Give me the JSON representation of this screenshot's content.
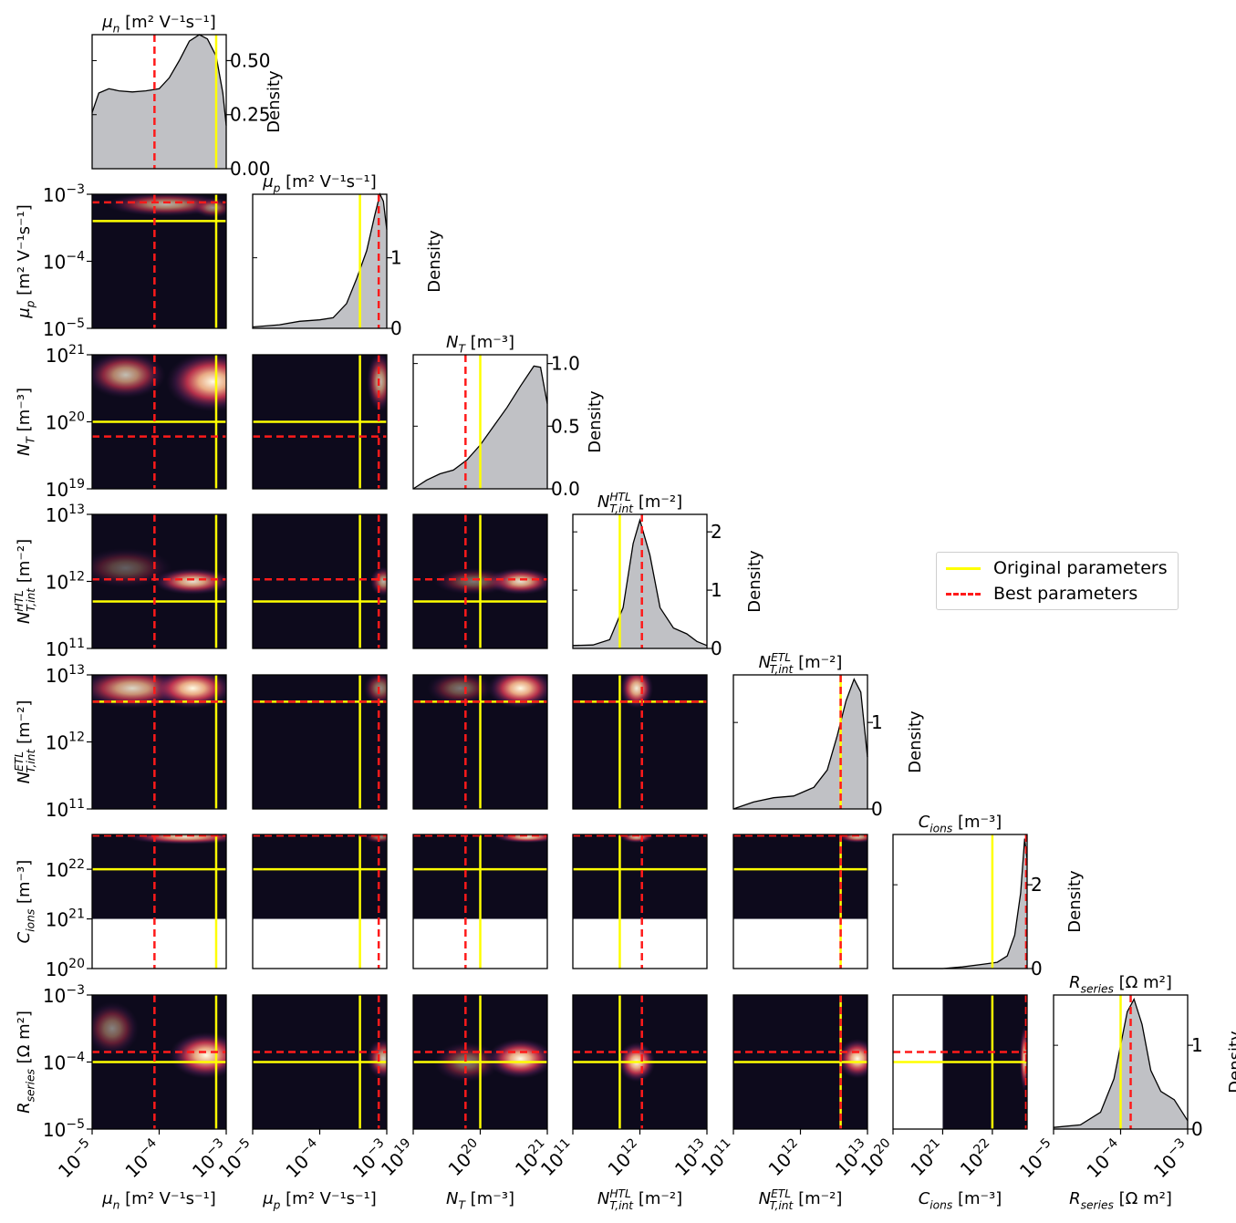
{
  "chart_data": {
    "type": "corner",
    "density_label": "Density",
    "params": [
      {
        "key": "mu_n",
        "sym": "μ",
        "sub": "n",
        "unit": " [m² V⁻¹s⁻¹]",
        "lim": [
          -5,
          -3
        ],
        "ticks": [
          -5,
          -4,
          -3
        ],
        "orig": -3.15,
        "best": -4.07
      },
      {
        "key": "mu_p",
        "sym": "μ",
        "sub": "p",
        "unit": " [m² V⁻¹s⁻¹]",
        "lim": [
          -5,
          -3
        ],
        "ticks": [
          -5,
          -4,
          -3
        ],
        "orig": -3.4,
        "best": -3.12
      },
      {
        "key": "N_T",
        "sym": "N",
        "sub": "T",
        "unit": " [m⁻³]",
        "lim": [
          19,
          21
        ],
        "ticks": [
          19,
          20,
          21
        ],
        "orig": 20.0,
        "best": 19.78
      },
      {
        "key": "N_HTL",
        "sym": "N",
        "sub": "T,int",
        "sup": "HTL",
        "unit": " [m⁻²]",
        "lim": [
          11,
          13
        ],
        "ticks": [
          11,
          12,
          13
        ],
        "orig": 11.7,
        "best": 12.03
      },
      {
        "key": "N_ETL",
        "sym": "N",
        "sub": "T,int",
        "sup": "ETL",
        "unit": " [m⁻²]",
        "lim": [
          11,
          13
        ],
        "ticks": [
          11,
          12,
          13
        ],
        "orig": 12.6,
        "best": 12.6
      },
      {
        "key": "C_ions",
        "sym": "C",
        "sub": "ions",
        "unit": " [m⁻³]",
        "lim": [
          20,
          22.7
        ],
        "ticks": [
          20,
          21,
          22
        ],
        "orig": 22.0,
        "best": 22.68
      },
      {
        "key": "R_series",
        "sym": "R",
        "sub": "series",
        "unit": " [Ω m²]",
        "lim": [
          -5,
          -3
        ],
        "ticks": [
          -5,
          -4,
          -3
        ],
        "orig": -4.0,
        "best": -3.85
      }
    ],
    "diagonals": [
      {
        "ymax": 0.62,
        "ytick_values": [
          0,
          0.25,
          0.5
        ],
        "ytick_labels": [
          "0.00",
          "0.25",
          "0.50"
        ],
        "curve": [
          [
            -5,
            0.26
          ],
          [
            -4.9,
            0.35
          ],
          [
            -4.75,
            0.37
          ],
          [
            -4.6,
            0.36
          ],
          [
            -4.4,
            0.355
          ],
          [
            -4.2,
            0.36
          ],
          [
            -4.0,
            0.37
          ],
          [
            -3.85,
            0.42
          ],
          [
            -3.7,
            0.5
          ],
          [
            -3.55,
            0.59
          ],
          [
            -3.4,
            0.62
          ],
          [
            -3.28,
            0.6
          ],
          [
            -3.15,
            0.52
          ],
          [
            -3.05,
            0.35
          ],
          [
            -3,
            0.2
          ]
        ]
      },
      {
        "ymax": 1.9,
        "ytick_values": [
          0,
          1
        ],
        "ytick_labels": [
          "0",
          "1"
        ],
        "curve": [
          [
            -5,
            0.02
          ],
          [
            -4.6,
            0.05
          ],
          [
            -4.3,
            0.1
          ],
          [
            -4.0,
            0.12
          ],
          [
            -3.8,
            0.15
          ],
          [
            -3.6,
            0.35
          ],
          [
            -3.45,
            0.7
          ],
          [
            -3.3,
            1.1
          ],
          [
            -3.18,
            1.6
          ],
          [
            -3.1,
            1.9
          ],
          [
            -3.05,
            1.8
          ],
          [
            -3,
            1.4
          ]
        ]
      },
      {
        "ymax": 1.07,
        "ytick_values": [
          0,
          0.5,
          1.0
        ],
        "ytick_labels": [
          "0.0",
          "0.5",
          "1.0"
        ],
        "curve": [
          [
            19,
            0.0
          ],
          [
            19.2,
            0.07
          ],
          [
            19.4,
            0.12
          ],
          [
            19.6,
            0.15
          ],
          [
            19.8,
            0.23
          ],
          [
            20.0,
            0.35
          ],
          [
            20.2,
            0.5
          ],
          [
            20.4,
            0.65
          ],
          [
            20.6,
            0.82
          ],
          [
            20.8,
            0.98
          ],
          [
            20.9,
            0.97
          ],
          [
            21,
            0.68
          ]
        ]
      },
      {
        "ymax": 2.3,
        "ytick_values": [
          0,
          1,
          2
        ],
        "ytick_labels": [
          "0",
          "1",
          "2"
        ],
        "curve": [
          [
            11,
            0.05
          ],
          [
            11.3,
            0.06
          ],
          [
            11.55,
            0.15
          ],
          [
            11.75,
            0.7
          ],
          [
            11.9,
            1.8
          ],
          [
            12.0,
            2.2
          ],
          [
            12.15,
            1.6
          ],
          [
            12.3,
            0.7
          ],
          [
            12.5,
            0.35
          ],
          [
            12.7,
            0.25
          ],
          [
            12.85,
            0.12
          ],
          [
            13,
            0.05
          ]
        ]
      },
      {
        "ymax": 1.55,
        "ytick_values": [
          0,
          1
        ],
        "ytick_labels": [
          "0",
          "1"
        ],
        "curve": [
          [
            11,
            0.0
          ],
          [
            11.3,
            0.08
          ],
          [
            11.6,
            0.13
          ],
          [
            11.9,
            0.15
          ],
          [
            12.2,
            0.25
          ],
          [
            12.4,
            0.45
          ],
          [
            12.55,
            0.85
          ],
          [
            12.68,
            1.25
          ],
          [
            12.8,
            1.5
          ],
          [
            12.9,
            1.35
          ],
          [
            13,
            0.6
          ]
        ]
      },
      {
        "ymax": 3.2,
        "ytick_values": [
          0,
          2
        ],
        "ytick_labels": [
          "0",
          "2"
        ],
        "curve": [
          [
            20,
            0
          ],
          [
            21.0,
            0
          ],
          [
            21.4,
            0.04
          ],
          [
            21.8,
            0.1
          ],
          [
            22.1,
            0.15
          ],
          [
            22.3,
            0.3
          ],
          [
            22.45,
            0.8
          ],
          [
            22.57,
            1.8
          ],
          [
            22.65,
            3.1
          ],
          [
            22.7,
            2.6
          ]
        ]
      },
      {
        "ymax": 1.6,
        "ytick_values": [
          0,
          1
        ],
        "ytick_labels": [
          "0",
          "1"
        ],
        "curve": [
          [
            -5,
            0.02
          ],
          [
            -4.6,
            0.05
          ],
          [
            -4.3,
            0.2
          ],
          [
            -4.1,
            0.6
          ],
          [
            -4.0,
            1.0
          ],
          [
            -3.9,
            1.4
          ],
          [
            -3.8,
            1.55
          ],
          [
            -3.68,
            1.25
          ],
          [
            -3.55,
            0.7
          ],
          [
            -3.4,
            0.45
          ],
          [
            -3.2,
            0.35
          ],
          [
            -3,
            0.1
          ]
        ]
      }
    ],
    "legend": {
      "original": "Original parameters",
      "best": "Best parameters"
    },
    "colors": {
      "original": "#ffff00",
      "best": "#ff1a1a",
      "fill": "#c0c1c5",
      "map_low": "#0d0a1c",
      "map_high": "#fffbe6"
    }
  }
}
